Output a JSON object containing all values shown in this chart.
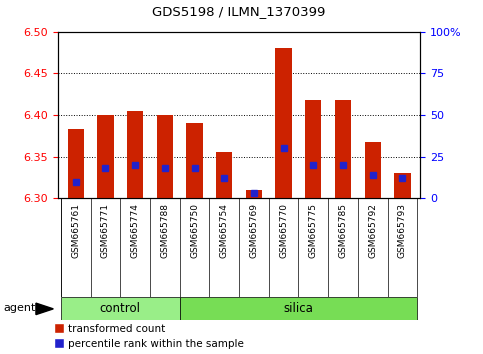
{
  "title": "GDS5198 / ILMN_1370399",
  "samples": [
    "GSM665761",
    "GSM665771",
    "GSM665774",
    "GSM665788",
    "GSM665750",
    "GSM665754",
    "GSM665769",
    "GSM665770",
    "GSM665775",
    "GSM665785",
    "GSM665792",
    "GSM665793"
  ],
  "groups": [
    "control",
    "control",
    "control",
    "control",
    "silica",
    "silica",
    "silica",
    "silica",
    "silica",
    "silica",
    "silica",
    "silica"
  ],
  "bar_bottom": 6.3,
  "transformed_counts": [
    6.383,
    6.4,
    6.405,
    6.4,
    6.39,
    6.355,
    6.31,
    6.48,
    6.418,
    6.418,
    6.368,
    6.33
  ],
  "percentile_ranks": [
    10,
    18,
    20,
    18,
    18,
    12,
    3,
    30,
    20,
    20,
    14,
    12
  ],
  "ylim_left": [
    6.3,
    6.5
  ],
  "ylim_right": [
    0,
    100
  ],
  "left_ticks": [
    6.3,
    6.35,
    6.4,
    6.45,
    6.5
  ],
  "right_ticks": [
    0,
    25,
    50,
    75,
    100
  ],
  "right_tick_labels": [
    "0",
    "25",
    "50",
    "75",
    "100%"
  ],
  "bar_color": "#cc2200",
  "marker_color": "#2222cc",
  "control_color": "#99ee88",
  "silica_color": "#77dd55",
  "agent_label": "agent",
  "group_labels": [
    "control",
    "silica"
  ],
  "legend_items": [
    "transformed count",
    "percentile rank within the sample"
  ],
  "n_control": 4,
  "n_silica": 8
}
